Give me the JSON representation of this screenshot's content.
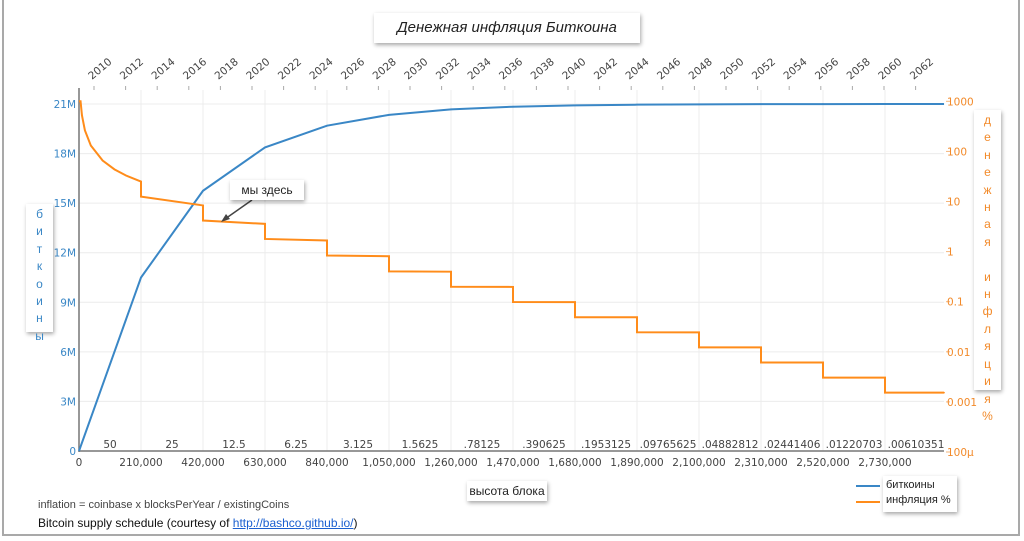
{
  "title": "Денежная инфляция Биткоина",
  "annotation": "мы здесь",
  "footer": {
    "formula": "inflation = coinbase x blocksPerYear / existingCoins",
    "credit_prefix": "Bitcoin supply schedule (courtesy of ",
    "credit_link": "http://bashco.github.io/",
    "credit_suffix": ")"
  },
  "chart_data": {
    "type": "line",
    "title": "Денежная инфляция Биткоина",
    "xlabel": "высота блока",
    "ylabel": "биткоины",
    "y2label": "денежная инфляция %",
    "ylabel_letters": [
      "б",
      "и",
      "т",
      "к",
      "о",
      "и",
      "н",
      "ы"
    ],
    "y2label_letters": [
      "д",
      "е",
      "н",
      "е",
      "ж",
      "н",
      "а",
      "я",
      " ",
      "и",
      "н",
      "ф",
      "л",
      "я",
      "ц",
      "и",
      "я",
      "%"
    ],
    "xlim": [
      0,
      2930000
    ],
    "ylim": [
      0,
      21000000
    ],
    "y2lim": [
      0.0001,
      1000
    ],
    "y2scale": "log",
    "grid": true,
    "legend_position": "bottom-right",
    "x_ticks": [
      0,
      210000,
      420000,
      630000,
      840000,
      1050000,
      1260000,
      1470000,
      1680000,
      1890000,
      2100000,
      2310000,
      2520000,
      2730000
    ],
    "x_tick_labels": [
      "0",
      "210,000",
      "420,000",
      "630,000",
      "840,000",
      "1,050,000",
      "1,260,000",
      "1,470,000",
      "1,680,000",
      "1,890,000",
      "2,100,000",
      "2,310,000",
      "2,520,000",
      "2,730,000"
    ],
    "y_ticks": [
      0,
      3000000,
      6000000,
      9000000,
      12000000,
      15000000,
      18000000,
      21000000
    ],
    "y_tick_labels": [
      "0",
      "3M",
      "6M",
      "9M",
      "12M",
      "15M",
      "18M",
      "21M"
    ],
    "y2_ticks": [
      0.0001,
      0.001,
      0.01,
      0.1,
      1,
      10,
      100,
      1000
    ],
    "y2_tick_labels": [
      "100μ",
      "0.001",
      "0.01",
      "0.1",
      "1",
      "10",
      "100",
      "1000"
    ],
    "top_axis_years": [
      "2010",
      "2012",
      "2014",
      "2016",
      "2018",
      "2020",
      "2022",
      "2024",
      "2026",
      "2028",
      "2030",
      "2032",
      "2034",
      "2036",
      "2038",
      "2040",
      "2042",
      "2044",
      "2046",
      "2048",
      "2050",
      "2052",
      "2054",
      "2056",
      "2058",
      "2060",
      "2062"
    ],
    "era_reward_labels": [
      "50",
      "25",
      "12.5",
      "6.25",
      "3.125",
      "1.5625",
      ".78125",
      ".390625",
      ".1953125",
      ".09765625",
      ".04882812",
      ".02441406",
      ".01220703",
      ".00610351"
    ],
    "series": [
      {
        "name": "биткоины",
        "color": "#3a87c6",
        "x": [
          0,
          210000,
          420000,
          630000,
          840000,
          1050000,
          1260000,
          1470000,
          1680000,
          1890000,
          2100000,
          2310000,
          2520000,
          2730000,
          2930000
        ],
        "y": [
          0,
          10500000,
          15750000,
          18375000,
          19687500,
          20343750,
          20671875,
          20835938,
          20917969,
          20958984,
          20979492,
          20989746,
          20994873,
          20997437,
          20998950
        ]
      },
      {
        "name": "инфляция %",
        "color": "#ff8c1a",
        "x": [
          5256,
          10000,
          20000,
          40000,
          80000,
          120000,
          160000,
          210000,
          210000,
          420000,
          420000,
          630000,
          630000,
          840000,
          840000,
          1050000,
          1050000,
          1260000,
          1260000,
          1470000,
          1470000,
          1680000,
          1680000,
          1890000,
          1890000,
          2100000,
          2100000,
          2310000,
          2310000,
          2520000,
          2520000,
          2730000,
          2730000,
          2930000
        ],
        "y": [
          1000,
          525.6,
          262.8,
          131.4,
          65.7,
          43.8,
          32.85,
          25.03,
          12.51,
          8.343,
          4.171,
          3.576,
          1.788,
          1.669,
          0.8343,
          0.8074,
          0.4037,
          0.3973,
          0.1986,
          0.1971,
          0.09854,
          0.09815,
          0.04907,
          0.04898,
          0.02449,
          0.02447,
          0.01223,
          0.01223,
          0.006113,
          0.006112,
          0.003056,
          0.003056,
          0.001528,
          0.001528
        ]
      }
    ]
  }
}
